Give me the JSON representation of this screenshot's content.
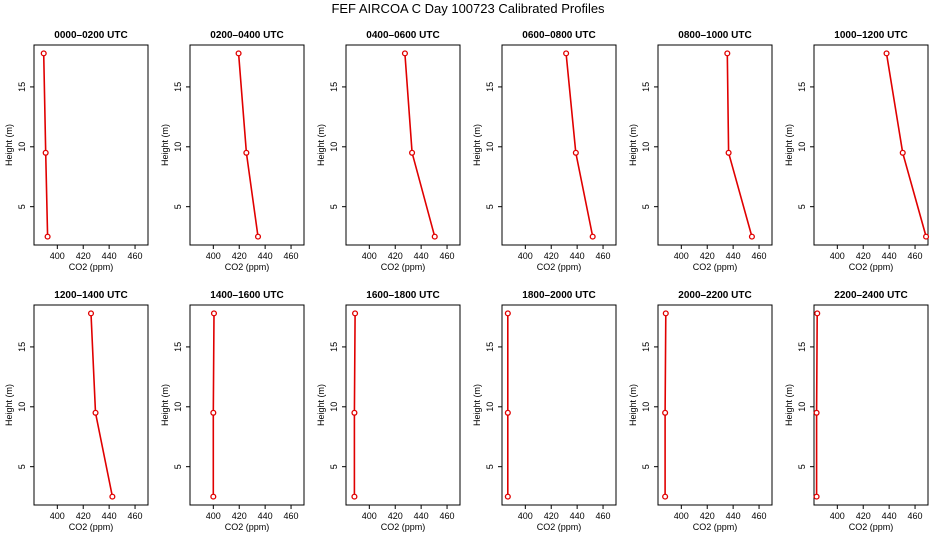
{
  "page_title": "FEF AIRCOA C  Day 100723  Calibrated Profiles",
  "colors": {
    "profile": "#e00000",
    "axis": "#000000",
    "background": "#ffffff"
  },
  "chart_data": [
    {
      "type": "line",
      "title": "0000–0200 UTC",
      "xlabel": "CO2 (ppm)",
      "ylabel": "Height (m)",
      "x": [
        389.5,
        391.0,
        392.5
      ],
      "y": [
        17.8,
        9.5,
        2.5
      ],
      "xlim": [
        382,
        470
      ],
      "ylim": [
        1.8,
        18.5
      ],
      "xticks": [
        "400",
        "420",
        "440",
        "460"
      ],
      "yticks": [
        "5",
        "10",
        "15"
      ]
    },
    {
      "type": "line",
      "title": "0200–0400 UTC",
      "xlabel": "CO2 (ppm)",
      "ylabel": "Height (m)",
      "x": [
        419.5,
        425.5,
        434.5
      ],
      "y": [
        17.8,
        9.5,
        2.5
      ],
      "xlim": [
        382,
        470
      ],
      "ylim": [
        1.8,
        18.5
      ],
      "xticks": [
        "400",
        "420",
        "440",
        "460"
      ],
      "yticks": [
        "5",
        "10",
        "15"
      ]
    },
    {
      "type": "line",
      "title": "0400–0600 UTC",
      "xlabel": "CO2 (ppm)",
      "ylabel": "Height (m)",
      "x": [
        427.5,
        433.0,
        450.5
      ],
      "y": [
        17.8,
        9.5,
        2.5
      ],
      "xlim": [
        382,
        470
      ],
      "ylim": [
        1.8,
        18.5
      ],
      "xticks": [
        "400",
        "420",
        "440",
        "460"
      ],
      "yticks": [
        "5",
        "10",
        "15"
      ]
    },
    {
      "type": "line",
      "title": "0600–0800 UTC",
      "xlabel": "CO2 (ppm)",
      "ylabel": "Height (m)",
      "x": [
        431.5,
        439.0,
        452.0
      ],
      "y": [
        17.8,
        9.5,
        2.5
      ],
      "xlim": [
        382,
        470
      ],
      "ylim": [
        1.8,
        18.5
      ],
      "xticks": [
        "400",
        "420",
        "440",
        "460"
      ],
      "yticks": [
        "5",
        "10",
        "15"
      ]
    },
    {
      "type": "line",
      "title": "0800–1000 UTC",
      "xlabel": "CO2 (ppm)",
      "ylabel": "Height (m)",
      "x": [
        435.5,
        436.5,
        454.5
      ],
      "y": [
        17.8,
        9.5,
        2.5
      ],
      "xlim": [
        382,
        470
      ],
      "ylim": [
        1.8,
        18.5
      ],
      "xticks": [
        "400",
        "420",
        "440",
        "460"
      ],
      "yticks": [
        "5",
        "10",
        "15"
      ]
    },
    {
      "type": "line",
      "title": "1000–1200 UTC",
      "xlabel": "CO2 (ppm)",
      "ylabel": "Height (m)",
      "x": [
        438.0,
        450.5,
        468.5
      ],
      "y": [
        17.8,
        9.5,
        2.5
      ],
      "xlim": [
        382,
        470
      ],
      "ylim": [
        1.8,
        18.5
      ],
      "xticks": [
        "400",
        "420",
        "440",
        "460"
      ],
      "yticks": [
        "5",
        "10",
        "15"
      ]
    },
    {
      "type": "line",
      "title": "1200–1400 UTC",
      "xlabel": "CO2 (ppm)",
      "ylabel": "Height (m)",
      "x": [
        426.0,
        429.5,
        442.5
      ],
      "y": [
        17.8,
        9.5,
        2.5
      ],
      "xlim": [
        382,
        470
      ],
      "ylim": [
        1.8,
        18.5
      ],
      "xticks": [
        "400",
        "420",
        "440",
        "460"
      ],
      "yticks": [
        "5",
        "10",
        "15"
      ]
    },
    {
      "type": "line",
      "title": "1400–1600 UTC",
      "xlabel": "CO2 (ppm)",
      "ylabel": "Height (m)",
      "x": [
        400.5,
        400.0,
        400.0
      ],
      "y": [
        17.8,
        9.5,
        2.5
      ],
      "xlim": [
        382,
        470
      ],
      "ylim": [
        1.8,
        18.5
      ],
      "xticks": [
        "400",
        "420",
        "440",
        "460"
      ],
      "yticks": [
        "5",
        "10",
        "15"
      ]
    },
    {
      "type": "line",
      "title": "1600–1800 UTC",
      "xlabel": "CO2 (ppm)",
      "ylabel": "Height (m)",
      "x": [
        389.0,
        388.5,
        388.5
      ],
      "y": [
        17.8,
        9.5,
        2.5
      ],
      "xlim": [
        382,
        470
      ],
      "ylim": [
        1.8,
        18.5
      ],
      "xticks": [
        "400",
        "420",
        "440",
        "460"
      ],
      "yticks": [
        "5",
        "10",
        "15"
      ]
    },
    {
      "type": "line",
      "title": "1800–2000 UTC",
      "xlabel": "CO2 (ppm)",
      "ylabel": "Height (m)",
      "x": [
        386.5,
        386.5,
        386.5
      ],
      "y": [
        17.8,
        9.5,
        2.5
      ],
      "xlim": [
        382,
        470
      ],
      "ylim": [
        1.8,
        18.5
      ],
      "xticks": [
        "400",
        "420",
        "440",
        "460"
      ],
      "yticks": [
        "5",
        "10",
        "15"
      ]
    },
    {
      "type": "line",
      "title": "2000–2200 UTC",
      "xlabel": "CO2 (ppm)",
      "ylabel": "Height (m)",
      "x": [
        388.0,
        387.5,
        387.5
      ],
      "y": [
        17.8,
        9.5,
        2.5
      ],
      "xlim": [
        382,
        470
      ],
      "ylim": [
        1.8,
        18.5
      ],
      "xticks": [
        "400",
        "420",
        "440",
        "460"
      ],
      "yticks": [
        "5",
        "10",
        "15"
      ]
    },
    {
      "type": "line",
      "title": "2200–2400 UTC",
      "xlabel": "CO2 (ppm)",
      "ylabel": "Height (m)",
      "x": [
        384.5,
        384.0,
        384.0
      ],
      "y": [
        17.8,
        9.5,
        2.5
      ],
      "xlim": [
        382,
        470
      ],
      "ylim": [
        1.8,
        18.5
      ],
      "xticks": [
        "400",
        "420",
        "440",
        "460"
      ],
      "yticks": [
        "5",
        "10",
        "15"
      ]
    }
  ]
}
